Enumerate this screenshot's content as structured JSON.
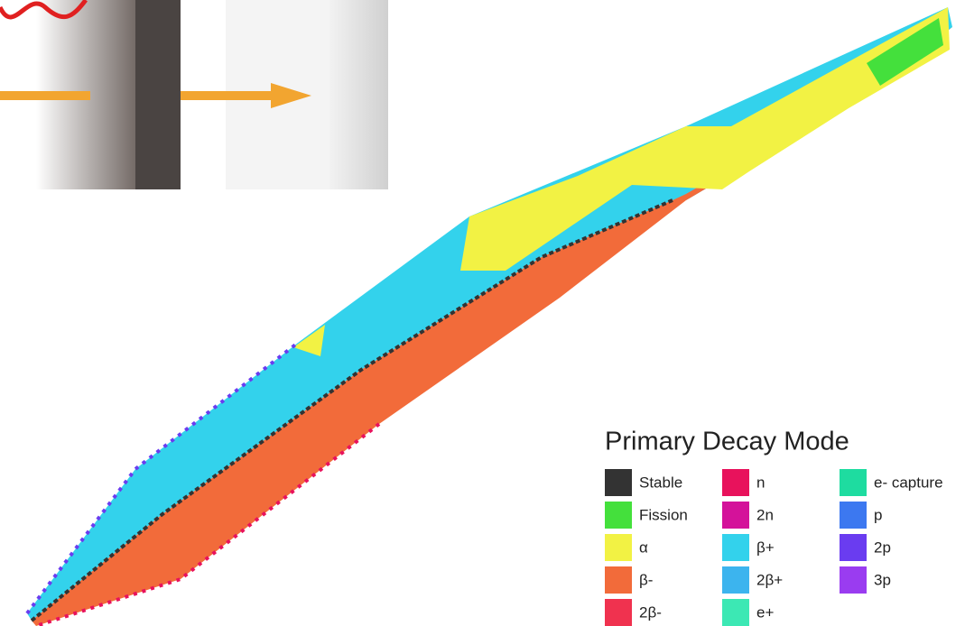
{
  "legend": {
    "title": "Primary Decay Mode",
    "items": [
      {
        "label": "Stable",
        "color": "#333333"
      },
      {
        "label": "Fission",
        "color": "#44e03c"
      },
      {
        "label": "α",
        "color": "#f2f244"
      },
      {
        "label": "β-",
        "color": "#f26b3a"
      },
      {
        "label": "2β-",
        "color": "#f0324f"
      },
      {
        "label": "n",
        "color": "#e8125c"
      },
      {
        "label": "2n",
        "color": "#d4129a"
      },
      {
        "label": "β+",
        "color": "#33d2ec"
      },
      {
        "label": "2β+",
        "color": "#3cb4ee"
      },
      {
        "label": "e+",
        "color": "#3ce8b4"
      },
      {
        "label": "e- capture",
        "color": "#1edca0"
      },
      {
        "label": "p",
        "color": "#3c78f0"
      },
      {
        "label": "2p",
        "color": "#6a3cf0"
      },
      {
        "label": "3p",
        "color": "#9a3cf0"
      }
    ]
  }
}
